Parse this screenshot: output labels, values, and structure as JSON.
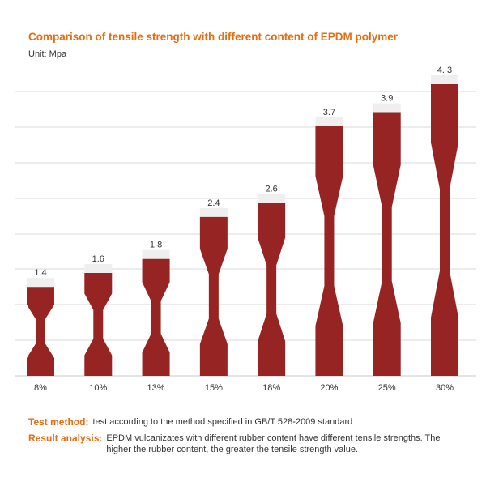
{
  "colors": {
    "accent": "#e66d12",
    "bar": "#952423",
    "cap": "#efefef",
    "grid": "#d9d9d9",
    "text": "#333333"
  },
  "notes": {
    "method_label": "Test method:",
    "method_text": "test according to the method specified in GB/T 528-2009 standard",
    "analysis_label": "Result analysis:",
    "analysis_text": "EPDM vulcanizates with different rubber content have different tensile strengths. The higher the rubber content, the greater the tensile strength value."
  },
  "chart_data": {
    "type": "bar",
    "title": "Comparison of tensile strength with different content of EPDM polymer",
    "unit_label": "Unit: Mpa",
    "categories": [
      "8%",
      "10%",
      "13%",
      "15%",
      "18%",
      "20%",
      "25%",
      "30%"
    ],
    "values": [
      1.4,
      1.6,
      1.8,
      2.4,
      2.6,
      3.7,
      3.9,
      4.3
    ],
    "value_labels": [
      "1.4",
      "1.6",
      "1.8",
      "2.4",
      "2.6",
      "3.7",
      "3.9",
      "4. 3"
    ],
    "ylim": [
      0,
      4.3
    ],
    "grid": true,
    "legend": "none"
  }
}
